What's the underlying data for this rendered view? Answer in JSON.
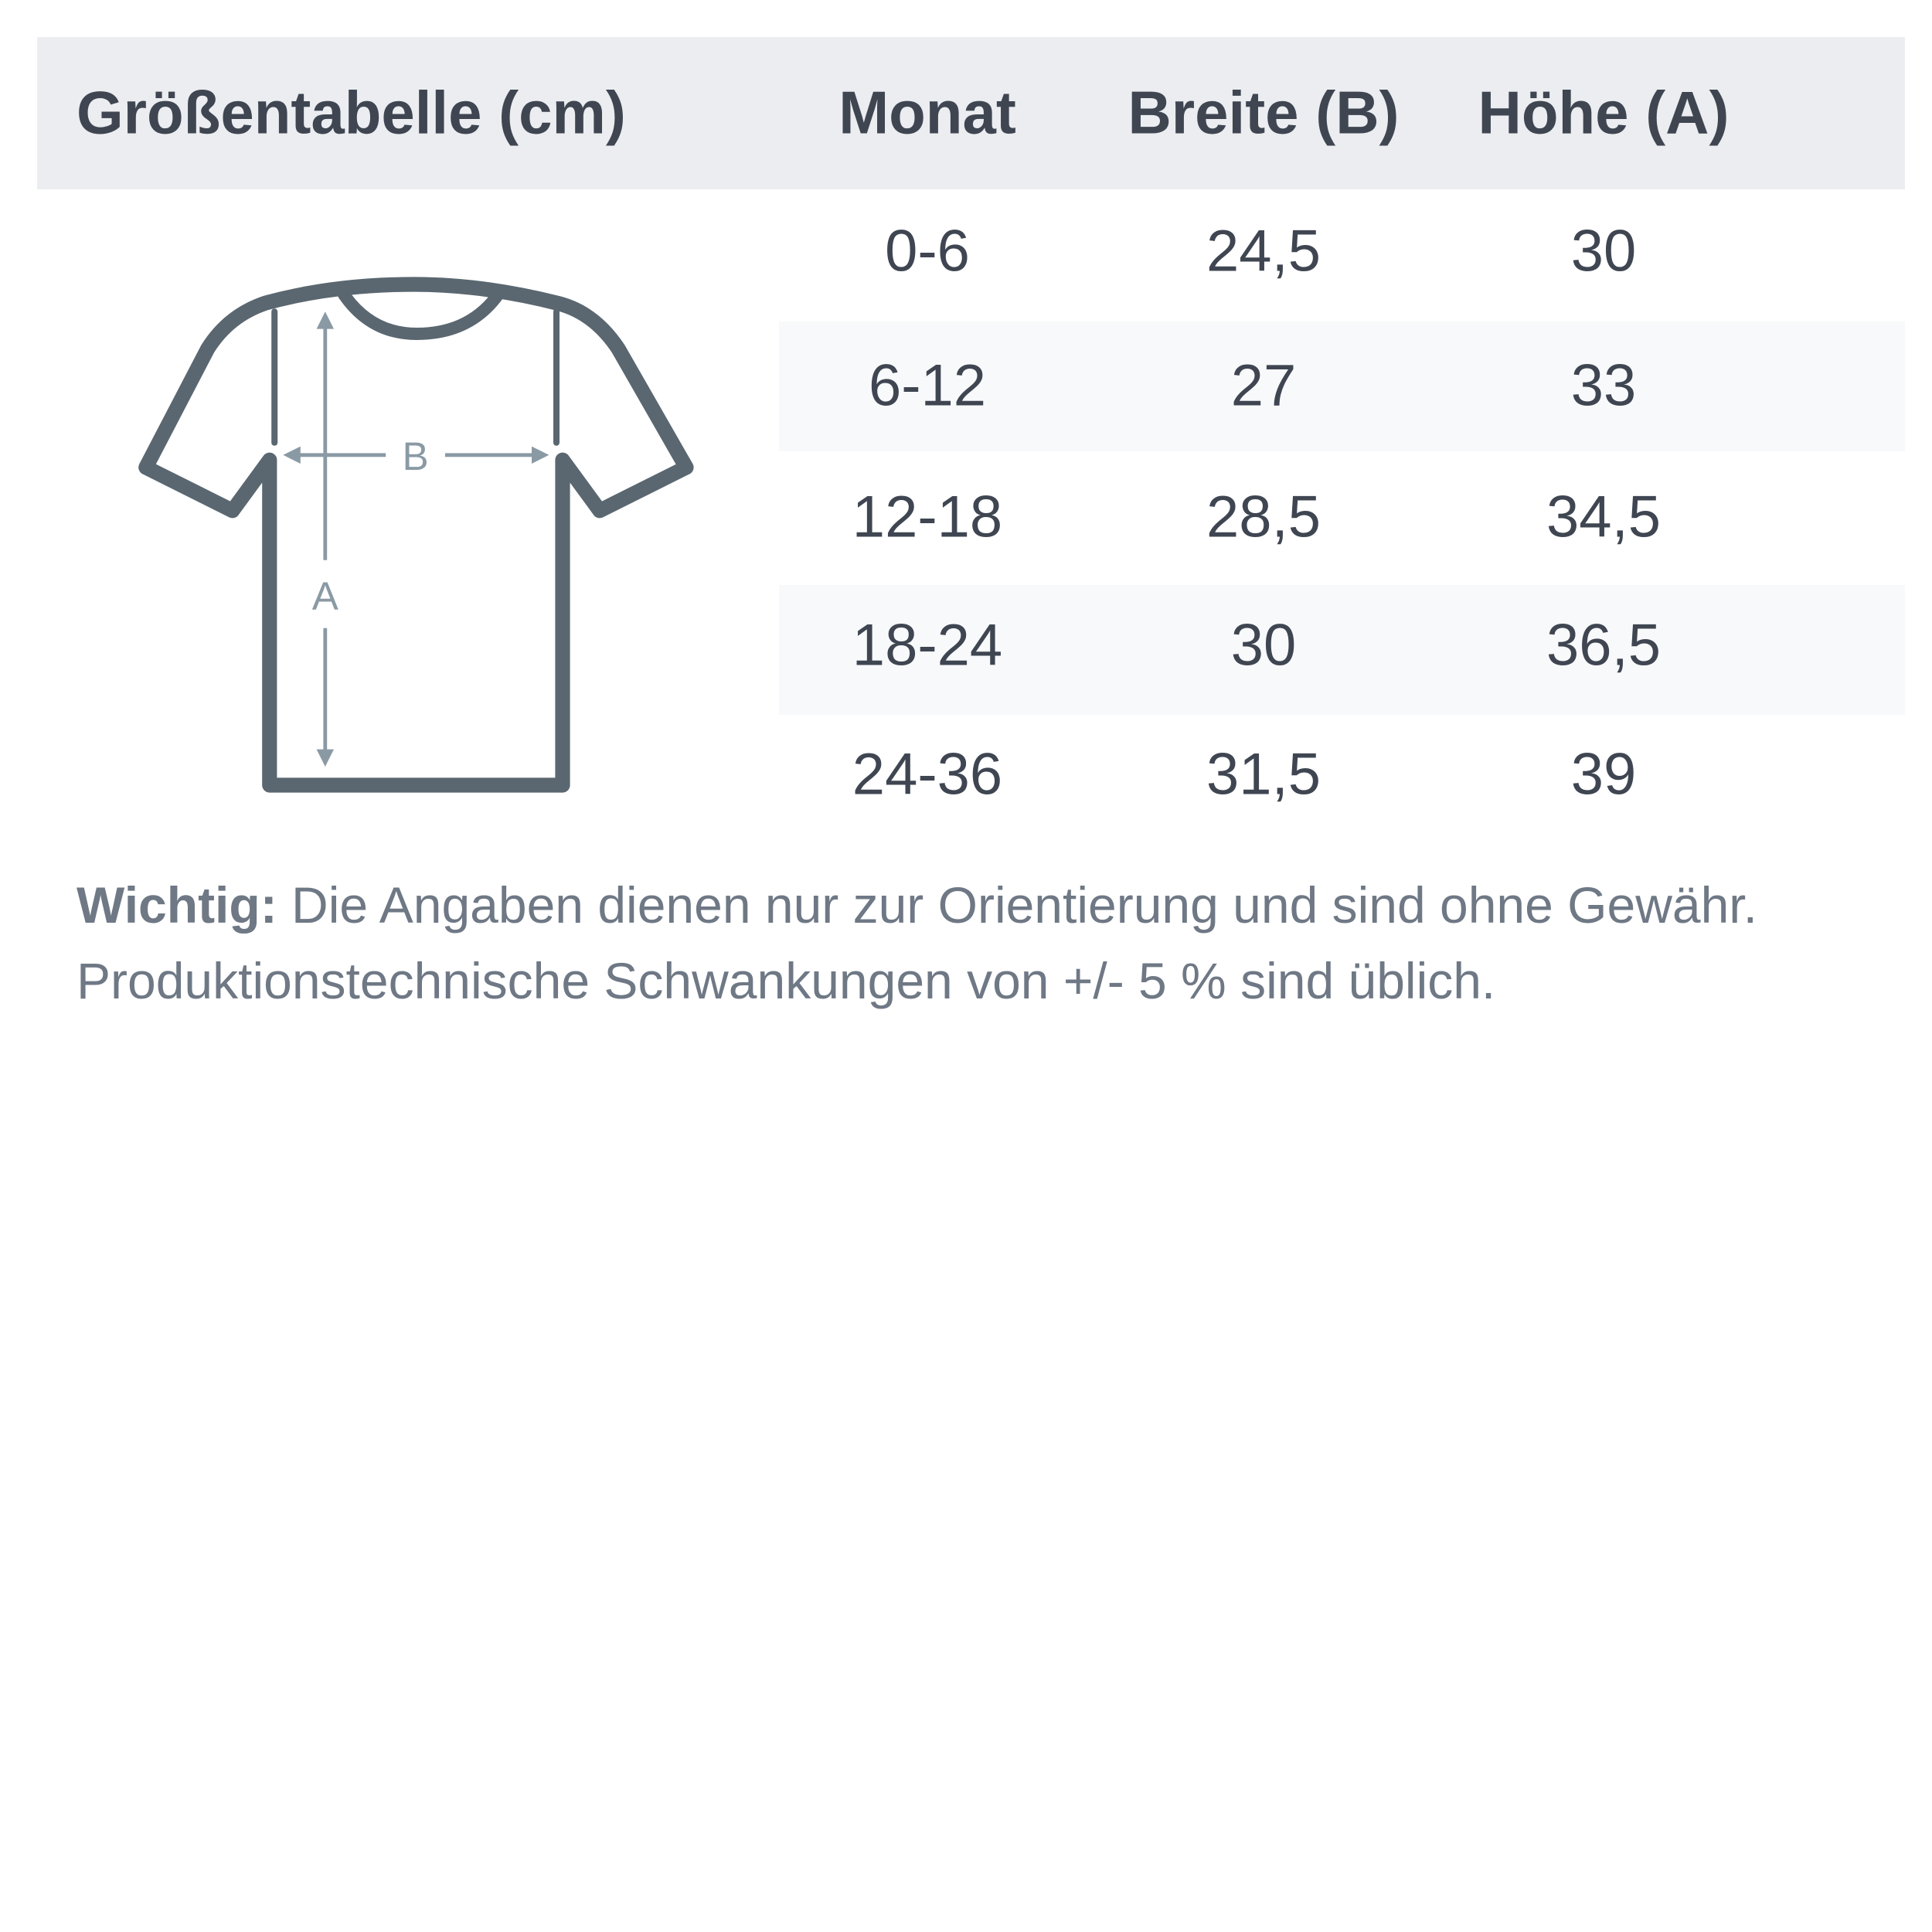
{
  "table": {
    "title": "Größentabelle (cm)",
    "columns": [
      "Monat",
      "Breite (B)",
      "Höhe (A)"
    ],
    "rows": [
      [
        "0-6",
        "24,5",
        "30"
      ],
      [
        "6-12",
        "27",
        "33"
      ],
      [
        "12-18",
        "28,5",
        "34,5"
      ],
      [
        "18-24",
        "30",
        "36,5"
      ],
      [
        "24-36",
        "31,5",
        "39"
      ]
    ]
  },
  "diagram": {
    "icon": "t-shirt-icon",
    "width_label": "B",
    "height_label": "A",
    "outline_color": "#5a6770",
    "arrow_color": "#8a9aa5"
  },
  "note": {
    "label": "Wichtig:",
    "line1": " Die Angaben dienen nur zur Orientierung und sind ohne Gewähr.",
    "line2": "Produktionstechnische Schwankungen von +/- 5 % sind üblich."
  },
  "colors": {
    "header_bg": "#ebedf0",
    "text": "#3f4652",
    "stripe": "#f8f9fa",
    "note_text": "#6f7885"
  }
}
